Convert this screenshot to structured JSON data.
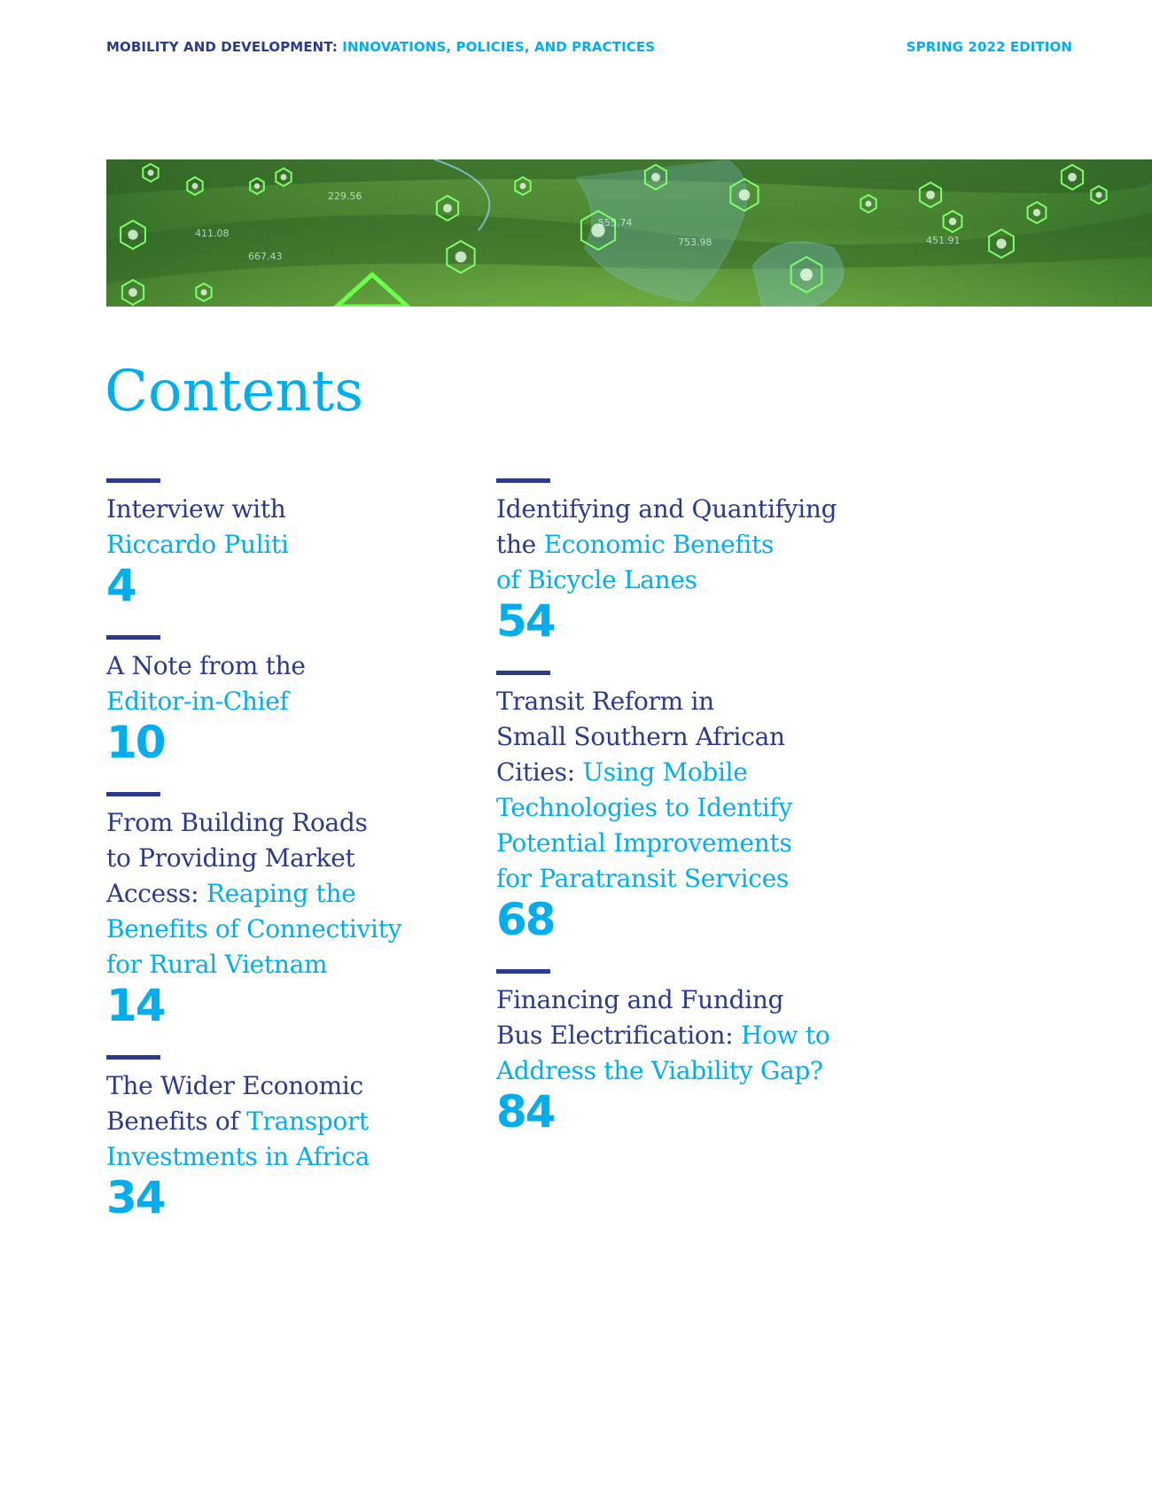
{
  "header": {
    "series_prefix": "MOBILITY AND DEVELOPMENT:",
    "series_subtitle": "INNOVATIONS, POLICIES, AND PRACTICES",
    "edition": "SPRING 2022 EDITION"
  },
  "banner": {
    "description_icon": "green-landscape-with-tech-hexagon-icons",
    "labels": [
      "411.08",
      "667.43",
      "229.56",
      "555.74",
      "753.98",
      "451.91"
    ]
  },
  "title": "Contents",
  "colors": {
    "navy": "#2b3a8c",
    "cyan": "#00aeef"
  },
  "entries_left": [
    {
      "lines": [
        [
          {
            "t": "Interview with",
            "a": false
          }
        ],
        [
          {
            "t": "Riccardo Puliti",
            "a": true
          }
        ]
      ],
      "page": "4"
    },
    {
      "lines": [
        [
          {
            "t": "A Note from the",
            "a": false
          }
        ],
        [
          {
            "t": "Editor-in-Chief",
            "a": true
          }
        ]
      ],
      "page": "10"
    },
    {
      "lines": [
        [
          {
            "t": "From Building Roads",
            "a": false
          }
        ],
        [
          {
            "t": "to Providing Market",
            "a": false
          }
        ],
        [
          {
            "t": "Access: ",
            "a": false
          },
          {
            "t": "Reaping the",
            "a": true
          }
        ],
        [
          {
            "t": "Benefits of Connectivity",
            "a": true
          }
        ],
        [
          {
            "t": "for Rural Vietnam",
            "a": true
          }
        ]
      ],
      "page": "14"
    },
    {
      "lines": [
        [
          {
            "t": "The Wider Economic",
            "a": false
          }
        ],
        [
          {
            "t": "Benefits of ",
            "a": false
          },
          {
            "t": "Transport",
            "a": true
          }
        ],
        [
          {
            "t": "Investments in Africa",
            "a": true
          }
        ]
      ],
      "page": "34"
    }
  ],
  "entries_right": [
    {
      "lines": [
        [
          {
            "t": "Identifying and Quantifying",
            "a": false
          }
        ],
        [
          {
            "t": "the ",
            "a": false
          },
          {
            "t": "Economic Benefits",
            "a": true
          }
        ],
        [
          {
            "t": "of Bicycle Lanes",
            "a": true
          }
        ]
      ],
      "page": "54"
    },
    {
      "lines": [
        [
          {
            "t": "Transit Reform in",
            "a": false
          }
        ],
        [
          {
            "t": "Small Southern African",
            "a": false
          }
        ],
        [
          {
            "t": "Cities: ",
            "a": false
          },
          {
            "t": "Using Mobile",
            "a": true
          }
        ],
        [
          {
            "t": "Technologies to Identify",
            "a": true
          }
        ],
        [
          {
            "t": "Potential Improvements",
            "a": true
          }
        ],
        [
          {
            "t": "for Paratransit Services",
            "a": true
          }
        ]
      ],
      "page": "68"
    },
    {
      "lines": [
        [
          {
            "t": "Financing and Funding",
            "a": false
          }
        ],
        [
          {
            "t": "Bus Electrification: ",
            "a": false
          },
          {
            "t": "How to",
            "a": true
          }
        ],
        [
          {
            "t": "Address the Viability Gap?",
            "a": true
          }
        ]
      ],
      "page": "84"
    }
  ]
}
